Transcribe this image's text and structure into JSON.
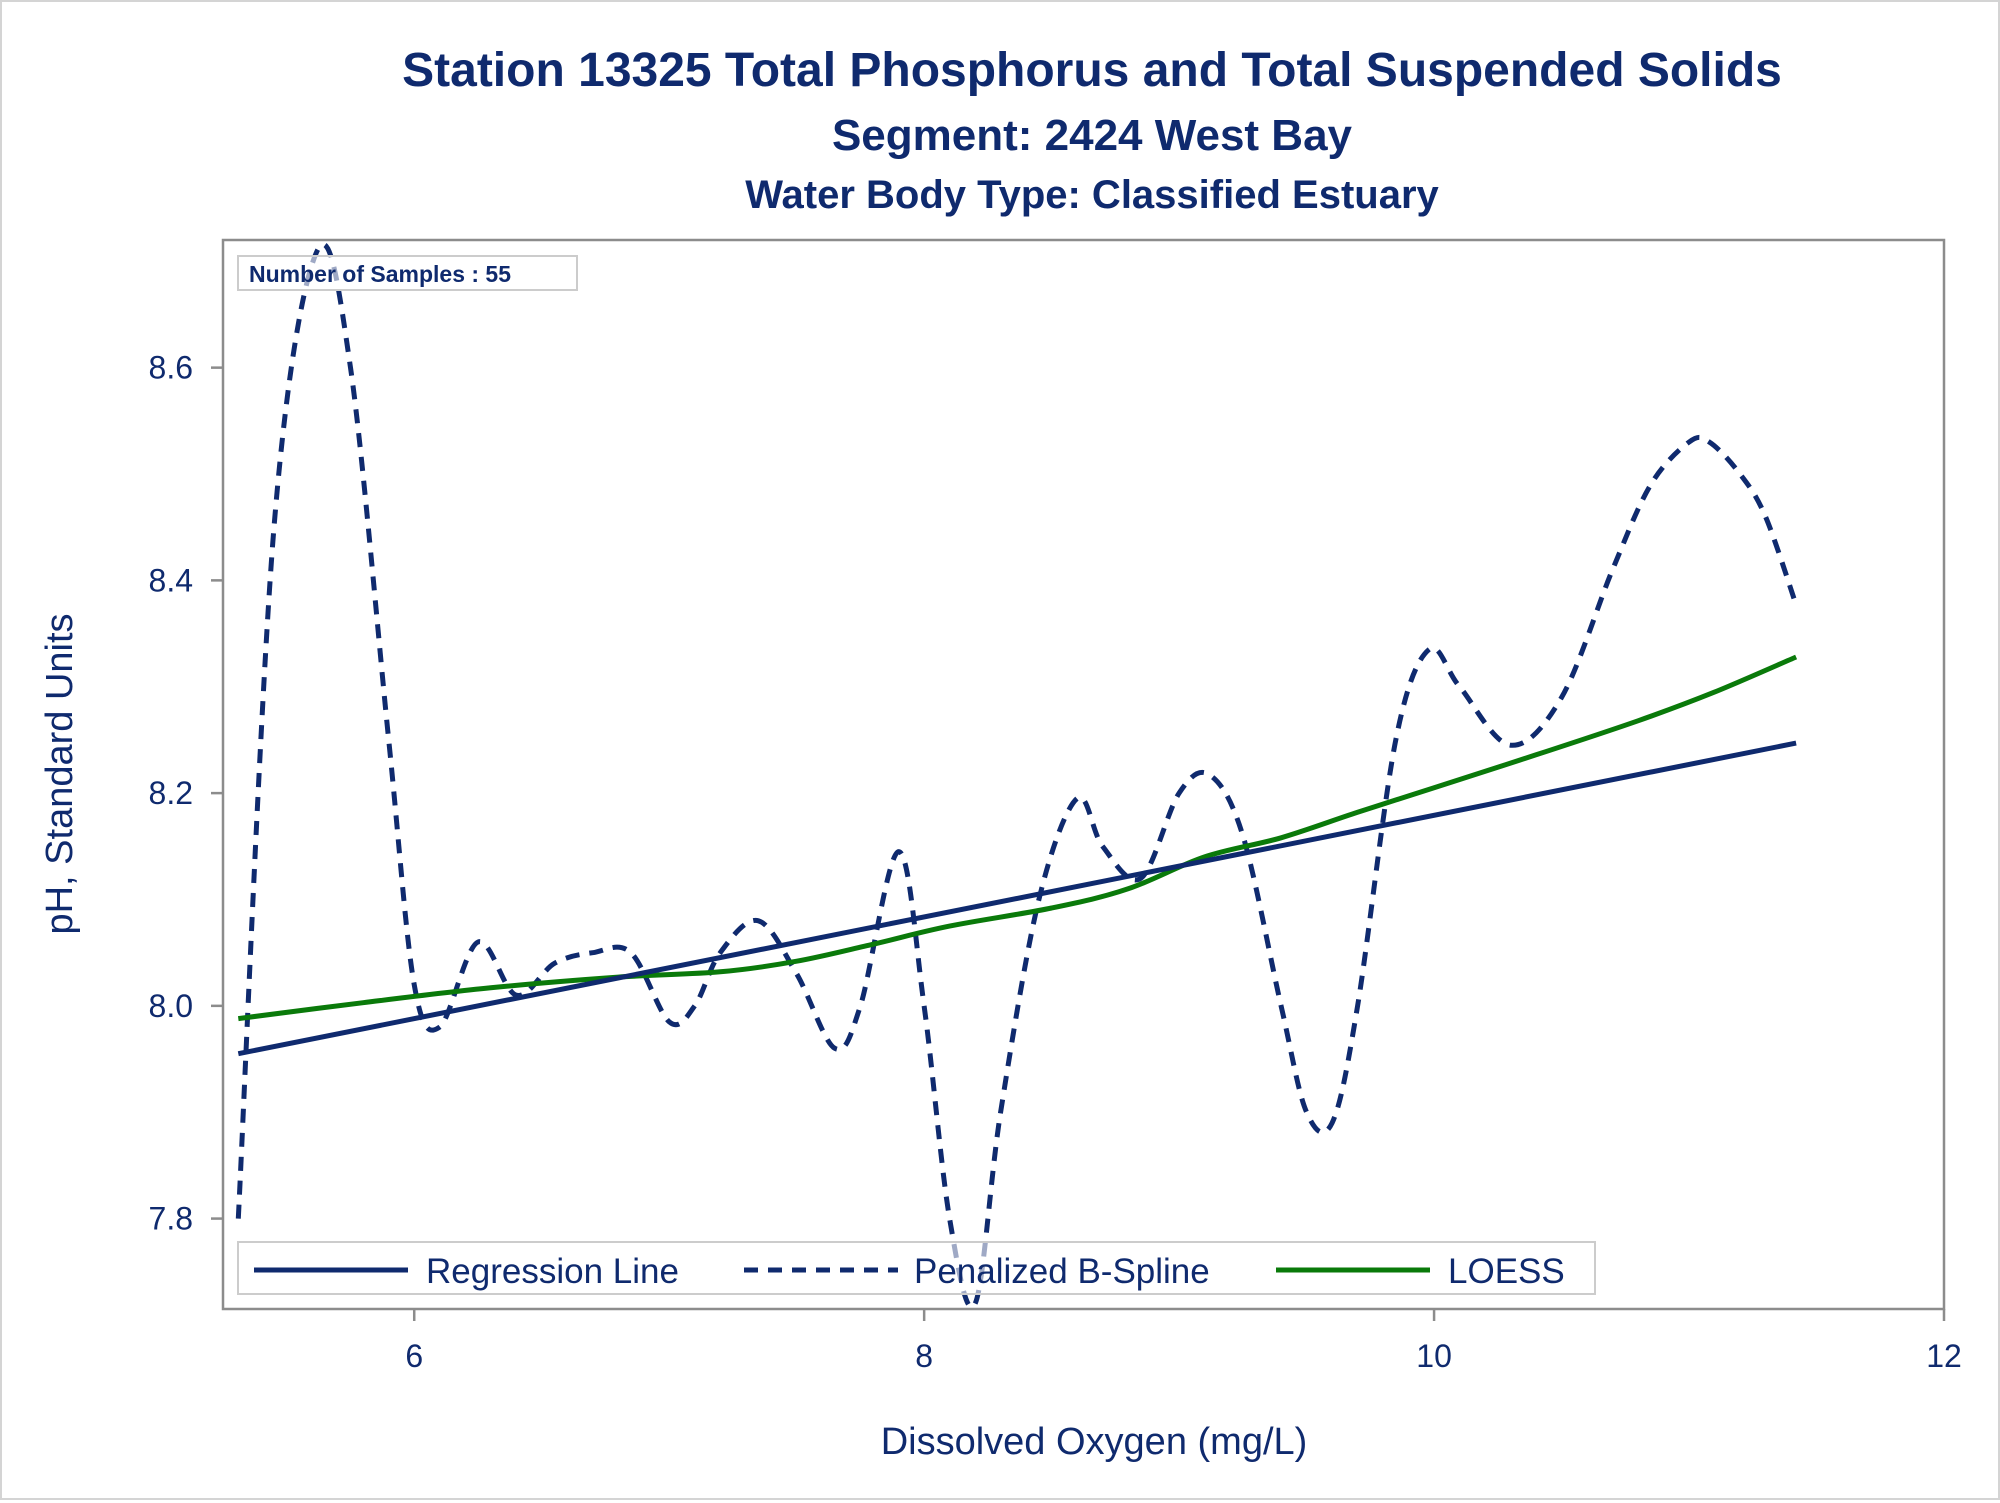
{
  "chart_data": {
    "type": "line",
    "title": "Station 13325  Total Phosphorus and Total Suspended Solids",
    "subtitle": "Segment: 2424  West Bay",
    "subtitle2": "Water Body Type: Classified Estuary",
    "xlabel": "Dissolved Oxygen (mg/L)",
    "ylabel": "pH, Standard Units",
    "xlim": [
      5.25,
      12.0
    ],
    "ylim": [
      7.715,
      8.72
    ],
    "x_ticks": [
      6,
      8,
      10,
      12
    ],
    "x_tick_labels": [
      "6",
      "8",
      "10",
      "12"
    ],
    "y_ticks": [
      7.8,
      8.0,
      8.2,
      8.4,
      8.6
    ],
    "y_tick_labels": [
      "7.8",
      "8.0",
      "8.2",
      "8.4",
      "8.6"
    ],
    "grid": false,
    "inset": "Number of Samples : 55",
    "legend_position": "bottom-left-inside",
    "colors": {
      "regression": "#0f2a6e",
      "spline": "#0f2a6e",
      "loess": "#0a7a0a",
      "text": "#0f2a6e",
      "frame": "#8c8c8c"
    },
    "series": [
      {
        "name": "Regression Line",
        "style": "solid",
        "x": [
          5.31,
          11.42
        ],
        "y": [
          7.955,
          8.247
        ]
      },
      {
        "name": "Penalized B-Spline",
        "style": "dashed",
        "x": [
          5.31,
          5.45,
          5.62,
          5.75,
          5.9,
          6.0,
          6.1,
          6.25,
          6.4,
          6.55,
          6.7,
          6.85,
          7.0,
          7.1,
          7.2,
          7.35,
          7.5,
          7.65,
          7.75,
          7.9,
          8.0,
          8.1,
          8.2,
          8.3,
          8.45,
          8.6,
          8.7,
          8.85,
          9.0,
          9.12,
          9.25,
          9.4,
          9.5,
          9.6,
          9.7,
          9.85,
          9.98,
          10.1,
          10.3,
          10.5,
          10.7,
          10.85,
          11.0,
          11.08,
          11.2,
          11.3,
          11.42
        ],
        "y": [
          7.8,
          8.45,
          8.71,
          8.6,
          8.25,
          8.02,
          7.98,
          8.06,
          8.01,
          8.04,
          8.05,
          8.05,
          7.985,
          8.0,
          8.05,
          8.08,
          8.03,
          7.96,
          8.0,
          8.145,
          8.0,
          7.8,
          7.72,
          7.9,
          8.1,
          8.195,
          8.15,
          8.12,
          8.2,
          8.217,
          8.16,
          8.0,
          7.9,
          7.89,
          8.0,
          8.25,
          8.335,
          8.3,
          8.245,
          8.29,
          8.41,
          8.49,
          8.53,
          8.53,
          8.5,
          8.46,
          8.377
        ]
      },
      {
        "name": "LOESS",
        "style": "solid",
        "x": [
          5.31,
          5.8,
          6.3,
          6.8,
          7.2,
          7.5,
          7.8,
          8.1,
          8.5,
          8.8,
          9.1,
          9.4,
          9.7,
          10.0,
          10.4,
          10.8,
          11.1,
          11.42
        ],
        "y": [
          7.988,
          8.003,
          8.017,
          8.027,
          8.032,
          8.042,
          8.058,
          8.075,
          8.092,
          8.11,
          8.14,
          8.158,
          8.182,
          8.205,
          8.236,
          8.268,
          8.295,
          8.328
        ]
      }
    ]
  }
}
